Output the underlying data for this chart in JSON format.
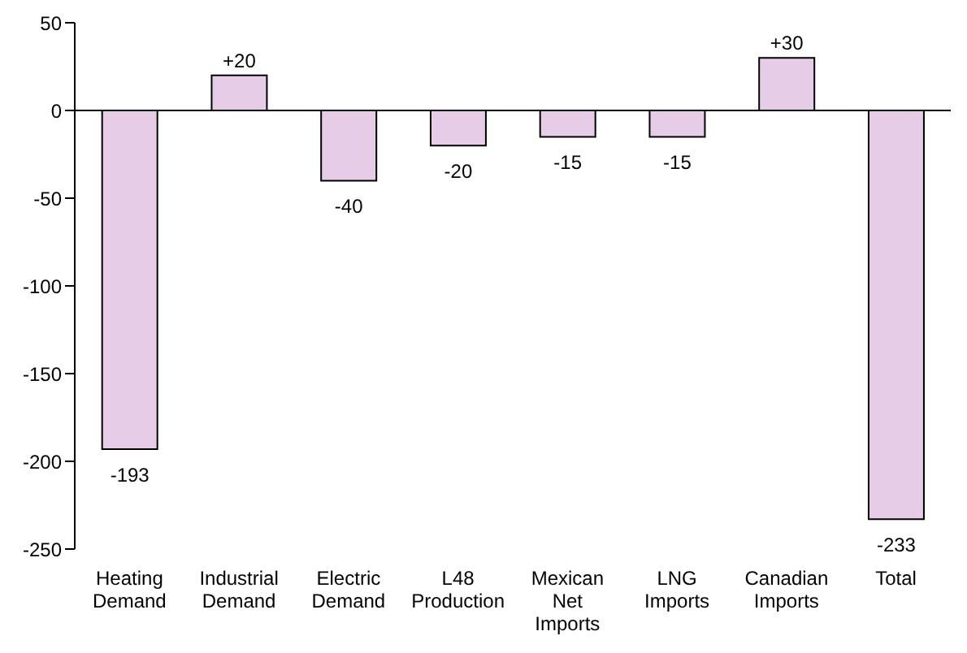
{
  "chart_data": {
    "type": "bar",
    "categories": [
      "Heating Demand",
      "Industrial Demand",
      "Electric Demand",
      "L48 Production",
      "Mexican Net Imports",
      "LNG Imports",
      "Canadian Imports",
      "Total"
    ],
    "values": [
      -193,
      20,
      -40,
      -20,
      -15,
      -15,
      30,
      -233
    ],
    "value_labels": [
      "-193",
      "+20",
      "-40",
      "-20",
      "-15",
      "-15",
      "+30",
      "-233"
    ],
    "color": "#e6cce6",
    "ylim": [
      -250,
      50
    ],
    "yticks": [
      -250,
      -200,
      -150,
      -100,
      -50,
      0,
      50
    ],
    "ref_lines": [
      {
        "axis": "y",
        "value": 0,
        "color": "#000000"
      }
    ],
    "grid": false,
    "legend": false
  }
}
